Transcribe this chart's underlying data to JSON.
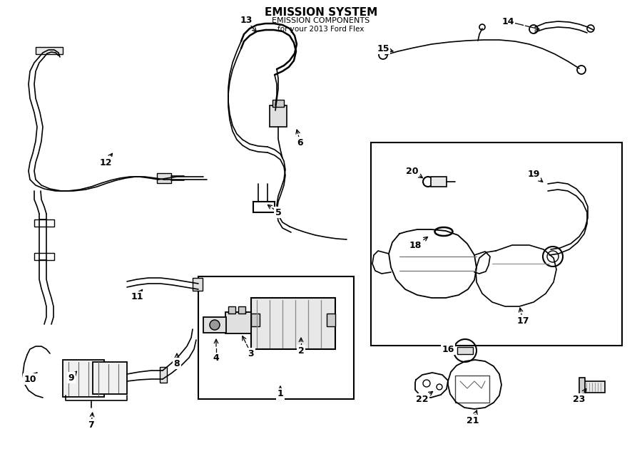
{
  "title": "EMISSION SYSTEM",
  "subtitle": "EMISSION COMPONENTS",
  "vehicle": "for your 2013 Ford Flex",
  "bg_color": "#ffffff",
  "line_color": "#000000",
  "label_data": [
    [
      1,
      393,
      553,
      393,
      538
    ],
    [
      2,
      422,
      492,
      422,
      470
    ],
    [
      3,
      352,
      496,
      338,
      468
    ],
    [
      4,
      303,
      503,
      303,
      472
    ],
    [
      5,
      390,
      298,
      372,
      285
    ],
    [
      6,
      421,
      200,
      415,
      178
    ],
    [
      7,
      128,
      596,
      130,
      575
    ],
    [
      8,
      248,
      510,
      248,
      492
    ],
    [
      9,
      100,
      530,
      110,
      518
    ],
    [
      10,
      42,
      532,
      55,
      520
    ],
    [
      11,
      192,
      417,
      202,
      403
    ],
    [
      12,
      148,
      228,
      160,
      212
    ],
    [
      13,
      345,
      28,
      362,
      48
    ],
    [
      14,
      712,
      30,
      760,
      42
    ],
    [
      15,
      537,
      68,
      555,
      73
    ],
    [
      16,
      628,
      490,
      640,
      500
    ],
    [
      17,
      733,
      450,
      728,
      428
    ],
    [
      18,
      582,
      345,
      603,
      330
    ],
    [
      19,
      748,
      245,
      764,
      258
    ],
    [
      20,
      578,
      240,
      596,
      252
    ],
    [
      21,
      663,
      590,
      670,
      572
    ],
    [
      22,
      592,
      560,
      610,
      547
    ],
    [
      23,
      812,
      560,
      824,
      542
    ]
  ]
}
